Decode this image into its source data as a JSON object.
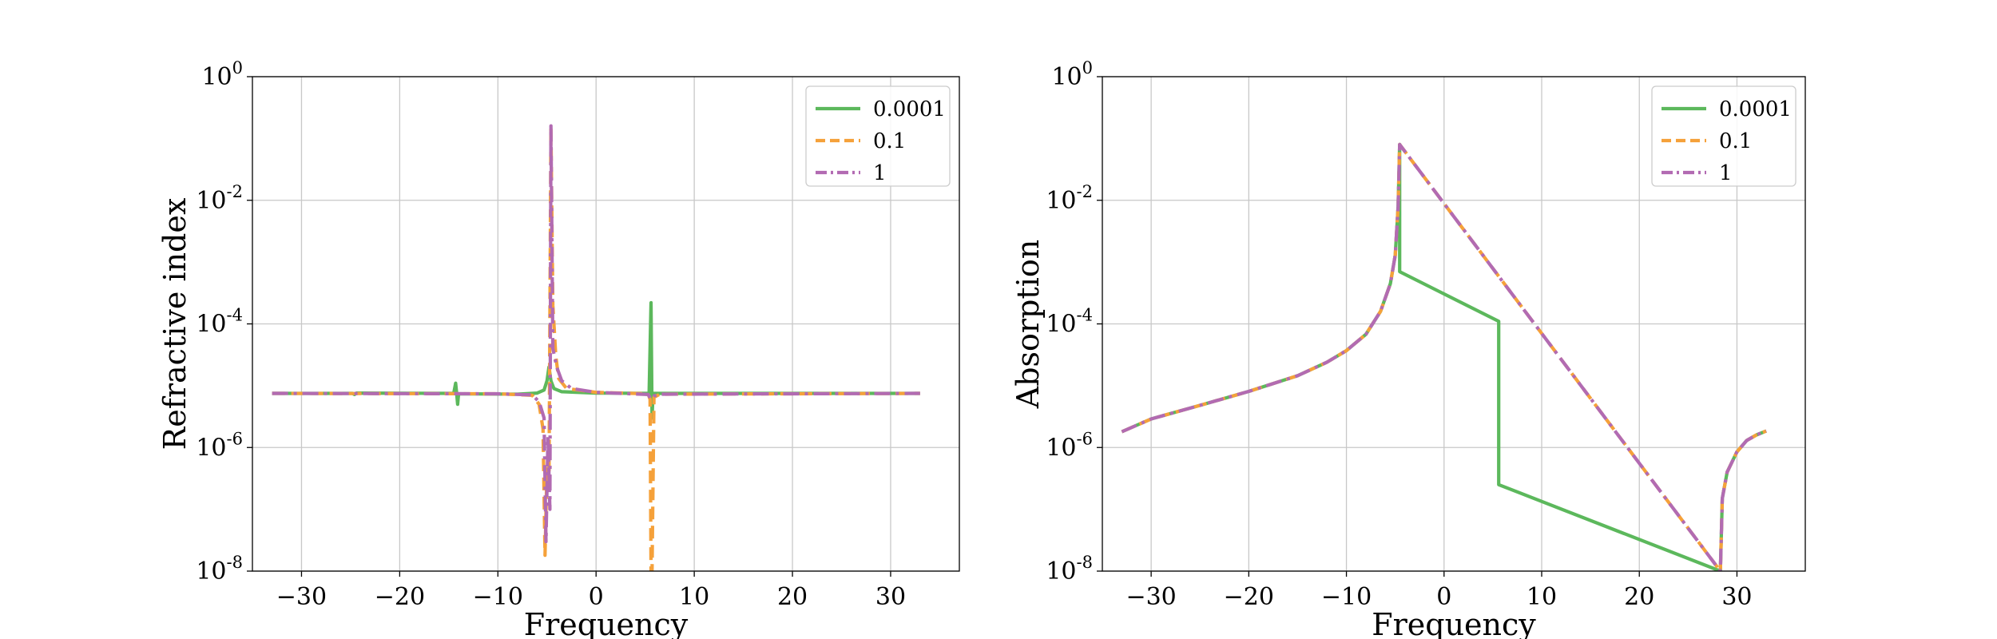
{
  "colors": {
    "s0001": "#5cb85c",
    "s01": "#f5a13a",
    "s1": "#b26bb2"
  },
  "chart_data": [
    {
      "type": "line",
      "xlabel": "Frequency",
      "ylabel": "Refractive index",
      "yscale": "log",
      "xlim": [
        -35,
        37
      ],
      "ylim": [
        1e-08,
        1
      ],
      "xticks": [
        -30,
        -20,
        -10,
        0,
        10,
        20,
        30
      ],
      "xtick_labels": [
        "−30",
        "−20",
        "−10",
        "0",
        "10",
        "20",
        "30"
      ],
      "yticks": [
        1e-08,
        1e-06,
        0.0001,
        0.01,
        1
      ],
      "ytick_labels": [
        {
          "base": "10",
          "exp": "-8"
        },
        {
          "base": "10",
          "exp": "-6"
        },
        {
          "base": "10",
          "exp": "-4"
        },
        {
          "base": "10",
          "exp": "-2"
        },
        {
          "base": "10",
          "exp": "0"
        }
      ],
      "grid": true,
      "legend": "upper-right",
      "series": [
        {
          "name": "0.0001",
          "style": "solid",
          "color": "#5cb85c",
          "points": [
            [
              -33,
              7.5e-06
            ],
            [
              -24.8,
              7.5e-06
            ],
            [
              -24.6,
              7.2e-06
            ],
            [
              -24.4,
              7.6e-06
            ],
            [
              -14.5,
              7.5e-06
            ],
            [
              -14.3,
              1.1e-05
            ],
            [
              -14.2,
              7.5e-06
            ],
            [
              -14.1,
              5e-06
            ],
            [
              -14.0,
              7.4e-06
            ],
            [
              -8,
              7.3e-06
            ],
            [
              -6,
              7.6e-06
            ],
            [
              -5.3,
              8.5e-06
            ],
            [
              -5.0,
              1.2e-05
            ],
            [
              -4.8,
              2e-05
            ],
            [
              -4.6,
              1.2e-05
            ],
            [
              -4.3,
              9e-06
            ],
            [
              -3.5,
              8e-06
            ],
            [
              0,
              7.6e-06
            ],
            [
              5.4,
              7.5e-06
            ],
            [
              5.6,
              0.00022
            ],
            [
              5.7,
              3e-06
            ],
            [
              5.8,
              7.5e-06
            ],
            [
              33,
              7.5e-06
            ]
          ]
        },
        {
          "name": "0.1",
          "style": "dashed",
          "color": "#f5a13a",
          "points": [
            [
              -33,
              7.5e-06
            ],
            [
              -10,
              7.4e-06
            ],
            [
              -6.5,
              7e-06
            ],
            [
              -5.8,
              5e-06
            ],
            [
              -5.4,
              2e-06
            ],
            [
              -5.2,
              1.8e-08
            ],
            [
              -5.0,
              5e-07
            ],
            [
              -4.8,
              2e-07
            ],
            [
              -4.6,
              0.15
            ],
            [
              -4.4,
              0.0002
            ],
            [
              -4.1,
              3e-05
            ],
            [
              -3.8,
              1.3e-05
            ],
            [
              -3,
              9e-06
            ],
            [
              0,
              7.8e-06
            ],
            [
              5.3,
              7.4e-06
            ],
            [
              5.5,
              6e-06
            ],
            [
              5.6,
              1e-08
            ],
            [
              5.7,
              1e-08
            ],
            [
              5.9,
              6.5e-06
            ],
            [
              6.5,
              7.3e-06
            ],
            [
              33,
              7.5e-06
            ]
          ]
        },
        {
          "name": "1",
          "style": "dashdot",
          "color": "#b26bb2",
          "points": [
            [
              -33,
              7.5e-06
            ],
            [
              -10,
              7.4e-06
            ],
            [
              -6.5,
              7.1e-06
            ],
            [
              -5.8,
              5.5e-06
            ],
            [
              -5.3,
              3e-06
            ],
            [
              -5.1,
              3e-08
            ],
            [
              -4.9,
              1.5e-06
            ],
            [
              -4.7,
              1e-07
            ],
            [
              -4.6,
              0.16
            ],
            [
              -4.4,
              4e-05
            ],
            [
              -4.0,
              2e-05
            ],
            [
              -3.5,
              1.2e-05
            ],
            [
              -2.5,
              9e-06
            ],
            [
              0,
              7.8e-06
            ],
            [
              5.3,
              7.2e-06
            ],
            [
              5.6,
              6e-06
            ],
            [
              5.9,
              6.8e-06
            ],
            [
              6.5,
              7.3e-06
            ],
            [
              33,
              7.5e-06
            ]
          ]
        }
      ]
    },
    {
      "type": "line",
      "xlabel": "Frequency",
      "ylabel": "Absorption",
      "yscale": "log",
      "xlim": [
        -35,
        37
      ],
      "ylim": [
        1e-08,
        1
      ],
      "xticks": [
        -30,
        -20,
        -10,
        0,
        10,
        20,
        30
      ],
      "xtick_labels": [
        "−30",
        "−20",
        "−10",
        "0",
        "10",
        "20",
        "30"
      ],
      "yticks": [
        1e-08,
        1e-06,
        0.0001,
        0.01,
        1
      ],
      "ytick_labels": [
        {
          "base": "10",
          "exp": "-8"
        },
        {
          "base": "10",
          "exp": "-6"
        },
        {
          "base": "10",
          "exp": "-4"
        },
        {
          "base": "10",
          "exp": "-2"
        },
        {
          "base": "10",
          "exp": "0"
        }
      ],
      "grid": true,
      "legend": "upper-right",
      "series": [
        {
          "name": "0.0001",
          "style": "solid",
          "color": "#5cb85c",
          "points": [
            [
              -33,
              1.8e-06
            ],
            [
              -30,
              2.9e-06
            ],
            [
              -25,
              4.8e-06
            ],
            [
              -20,
              8.1e-06
            ],
            [
              -15,
              1.45e-05
            ],
            [
              -12,
              2.4e-05
            ],
            [
              -10,
              3.7e-05
            ],
            [
              -8,
              6.8e-05
            ],
            [
              -6.5,
              0.00016
            ],
            [
              -5.5,
              0.00045
            ],
            [
              -5.0,
              0.0013
            ],
            [
              -4.7,
              0.008
            ],
            [
              -4.55,
              0.08
            ],
            [
              -4.55,
              0.0007
            ],
            [
              5.6,
              0.00011
            ],
            [
              5.6,
              2.5e-07
            ],
            [
              28.3,
              1e-08
            ],
            [
              28.5,
              1.5e-07
            ],
            [
              29,
              4e-07
            ],
            [
              30,
              8.5e-07
            ],
            [
              31,
              1.3e-06
            ],
            [
              32,
              1.6e-06
            ],
            [
              33,
              1.85e-06
            ]
          ]
        },
        {
          "name": "0.1",
          "style": "dashed",
          "color": "#f5a13a",
          "points": [
            [
              -33,
              1.8e-06
            ],
            [
              -30,
              2.9e-06
            ],
            [
              -25,
              4.8e-06
            ],
            [
              -20,
              8.1e-06
            ],
            [
              -15,
              1.45e-05
            ],
            [
              -12,
              2.4e-05
            ],
            [
              -10,
              3.7e-05
            ],
            [
              -8,
              6.8e-05
            ],
            [
              -6.5,
              0.00016
            ],
            [
              -5.5,
              0.00045
            ],
            [
              -5.0,
              0.0013
            ],
            [
              -4.7,
              0.008
            ],
            [
              -4.55,
              0.08
            ],
            [
              28.3,
              1e-08
            ],
            [
              28.5,
              1.5e-07
            ],
            [
              29,
              4e-07
            ],
            [
              30,
              8.5e-07
            ],
            [
              31,
              1.3e-06
            ],
            [
              32,
              1.6e-06
            ],
            [
              33,
              1.85e-06
            ]
          ]
        },
        {
          "name": "1",
          "style": "dashdot",
          "color": "#b26bb2",
          "points": [
            [
              -33,
              1.8e-06
            ],
            [
              -30,
              2.9e-06
            ],
            [
              -25,
              4.8e-06
            ],
            [
              -20,
              8.1e-06
            ],
            [
              -15,
              1.45e-05
            ],
            [
              -12,
              2.4e-05
            ],
            [
              -10,
              3.7e-05
            ],
            [
              -8,
              6.8e-05
            ],
            [
              -6.5,
              0.00016
            ],
            [
              -5.5,
              0.00045
            ],
            [
              -5.0,
              0.0013
            ],
            [
              -4.7,
              0.008
            ],
            [
              -4.55,
              0.08
            ],
            [
              28.3,
              1e-08
            ],
            [
              28.5,
              1.5e-07
            ],
            [
              29,
              4e-07
            ],
            [
              30,
              8.5e-07
            ],
            [
              31,
              1.3e-06
            ],
            [
              32,
              1.6e-06
            ],
            [
              33,
              1.85e-06
            ]
          ]
        }
      ]
    }
  ]
}
